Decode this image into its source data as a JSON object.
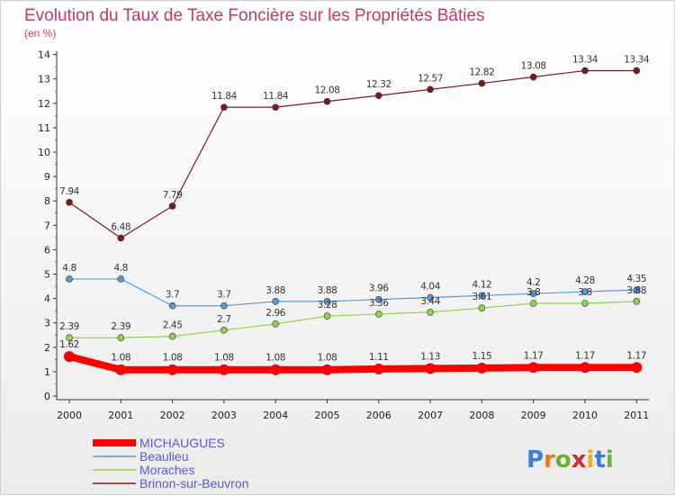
{
  "chart_data": {
    "type": "line",
    "title": "Evolution du Taux de Taxe Foncière sur les Propriétés Bâties",
    "subtitle": "(en %)",
    "x": [
      "2000",
      "2001",
      "2002",
      "2003",
      "2004",
      "2005",
      "2006",
      "2007",
      "2008",
      "2009",
      "2010",
      "2011"
    ],
    "ylim": [
      0,
      14
    ],
    "yticks": [
      "0",
      "1",
      "2",
      "3",
      "4",
      "5",
      "6",
      "7",
      "8",
      "9",
      "10",
      "11",
      "12",
      "13",
      "14"
    ],
    "grid": false,
    "legend_position": "bottom-left",
    "series": [
      {
        "name": "Brinon-sur-Beuvron",
        "color": "#7a1a1a",
        "values": [
          7.94,
          6.48,
          7.79,
          11.84,
          11.84,
          12.08,
          12.32,
          12.57,
          12.82,
          13.08,
          13.34,
          13.34
        ],
        "labels": [
          "7.94",
          "6.48",
          "7.79",
          "11.84",
          "11.84",
          "12.08",
          "12.32",
          "12.57",
          "12.82",
          "13.08",
          "13.34",
          "13.34"
        ]
      },
      {
        "name": "Beaulieu",
        "color": "#5b9bd5",
        "values": [
          4.8,
          4.8,
          3.7,
          3.7,
          3.88,
          3.88,
          3.96,
          4.04,
          4.12,
          4.2,
          4.28,
          4.35
        ],
        "labels": [
          "4.8",
          "4.8",
          "3.7",
          "3.7",
          "3.88",
          "3.88",
          "3.96",
          "4.04",
          "4.12",
          "4.2",
          "4.28",
          "4.35"
        ]
      },
      {
        "name": "Moraches",
        "color": "#8cd64b",
        "values": [
          2.39,
          2.39,
          2.45,
          2.7,
          2.96,
          3.28,
          3.36,
          3.44,
          3.61,
          3.8,
          3.8,
          3.88
        ],
        "labels": [
          "2.39",
          "2.39",
          "2.45",
          "2.7",
          "2.96",
          "3.28",
          "3.36",
          "3.44",
          "3.61",
          "3.8",
          "3.8",
          "3.88"
        ]
      },
      {
        "name": "MICHAUGUES",
        "color": "#ff0000",
        "values": [
          1.62,
          1.08,
          1.08,
          1.08,
          1.08,
          1.08,
          1.11,
          1.13,
          1.15,
          1.17,
          1.17,
          1.17
        ],
        "labels": [
          "1.62",
          "1.08",
          "1.08",
          "1.08",
          "1.08",
          "1.08",
          "1.11",
          "1.13",
          "1.15",
          "1.17",
          "1.17",
          "1.17"
        ]
      }
    ],
    "legend": [
      "MICHAUGUES",
      "Beaulieu",
      "Moraches",
      "Brinon-sur-Beuvron"
    ]
  },
  "logo": {
    "letters": [
      "P",
      "r",
      "o",
      "x",
      "i",
      "t",
      "i"
    ],
    "colors": [
      "#3b7fd0",
      "#e87a1e",
      "#6bb02e",
      "#d02e2e",
      "#e8b21e",
      "#3b7fd0",
      "#6bb02e"
    ]
  }
}
